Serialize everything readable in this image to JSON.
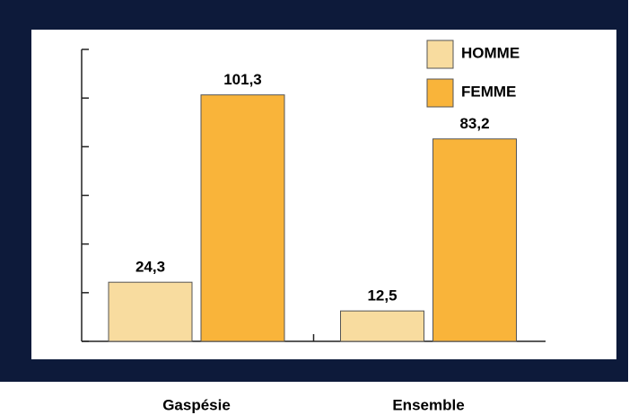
{
  "chart_data": {
    "type": "bar",
    "categories": [
      "Gaspésie",
      "Ensemble"
    ],
    "series": [
      {
        "name": "HOMME",
        "color": "#f8dc9f",
        "values": [
          24.3,
          12.5
        ],
        "value_labels": [
          "24,3",
          "12,5"
        ]
      },
      {
        "name": "FEMME",
        "color": "#f9b43a",
        "values": [
          101.3,
          83.2
        ],
        "value_labels": [
          "101,3",
          "83,2"
        ]
      }
    ],
    "ylim": [
      0,
      120
    ],
    "yticks": [
      0,
      20,
      40,
      60,
      80,
      100,
      120
    ],
    "legend": "upper right"
  }
}
